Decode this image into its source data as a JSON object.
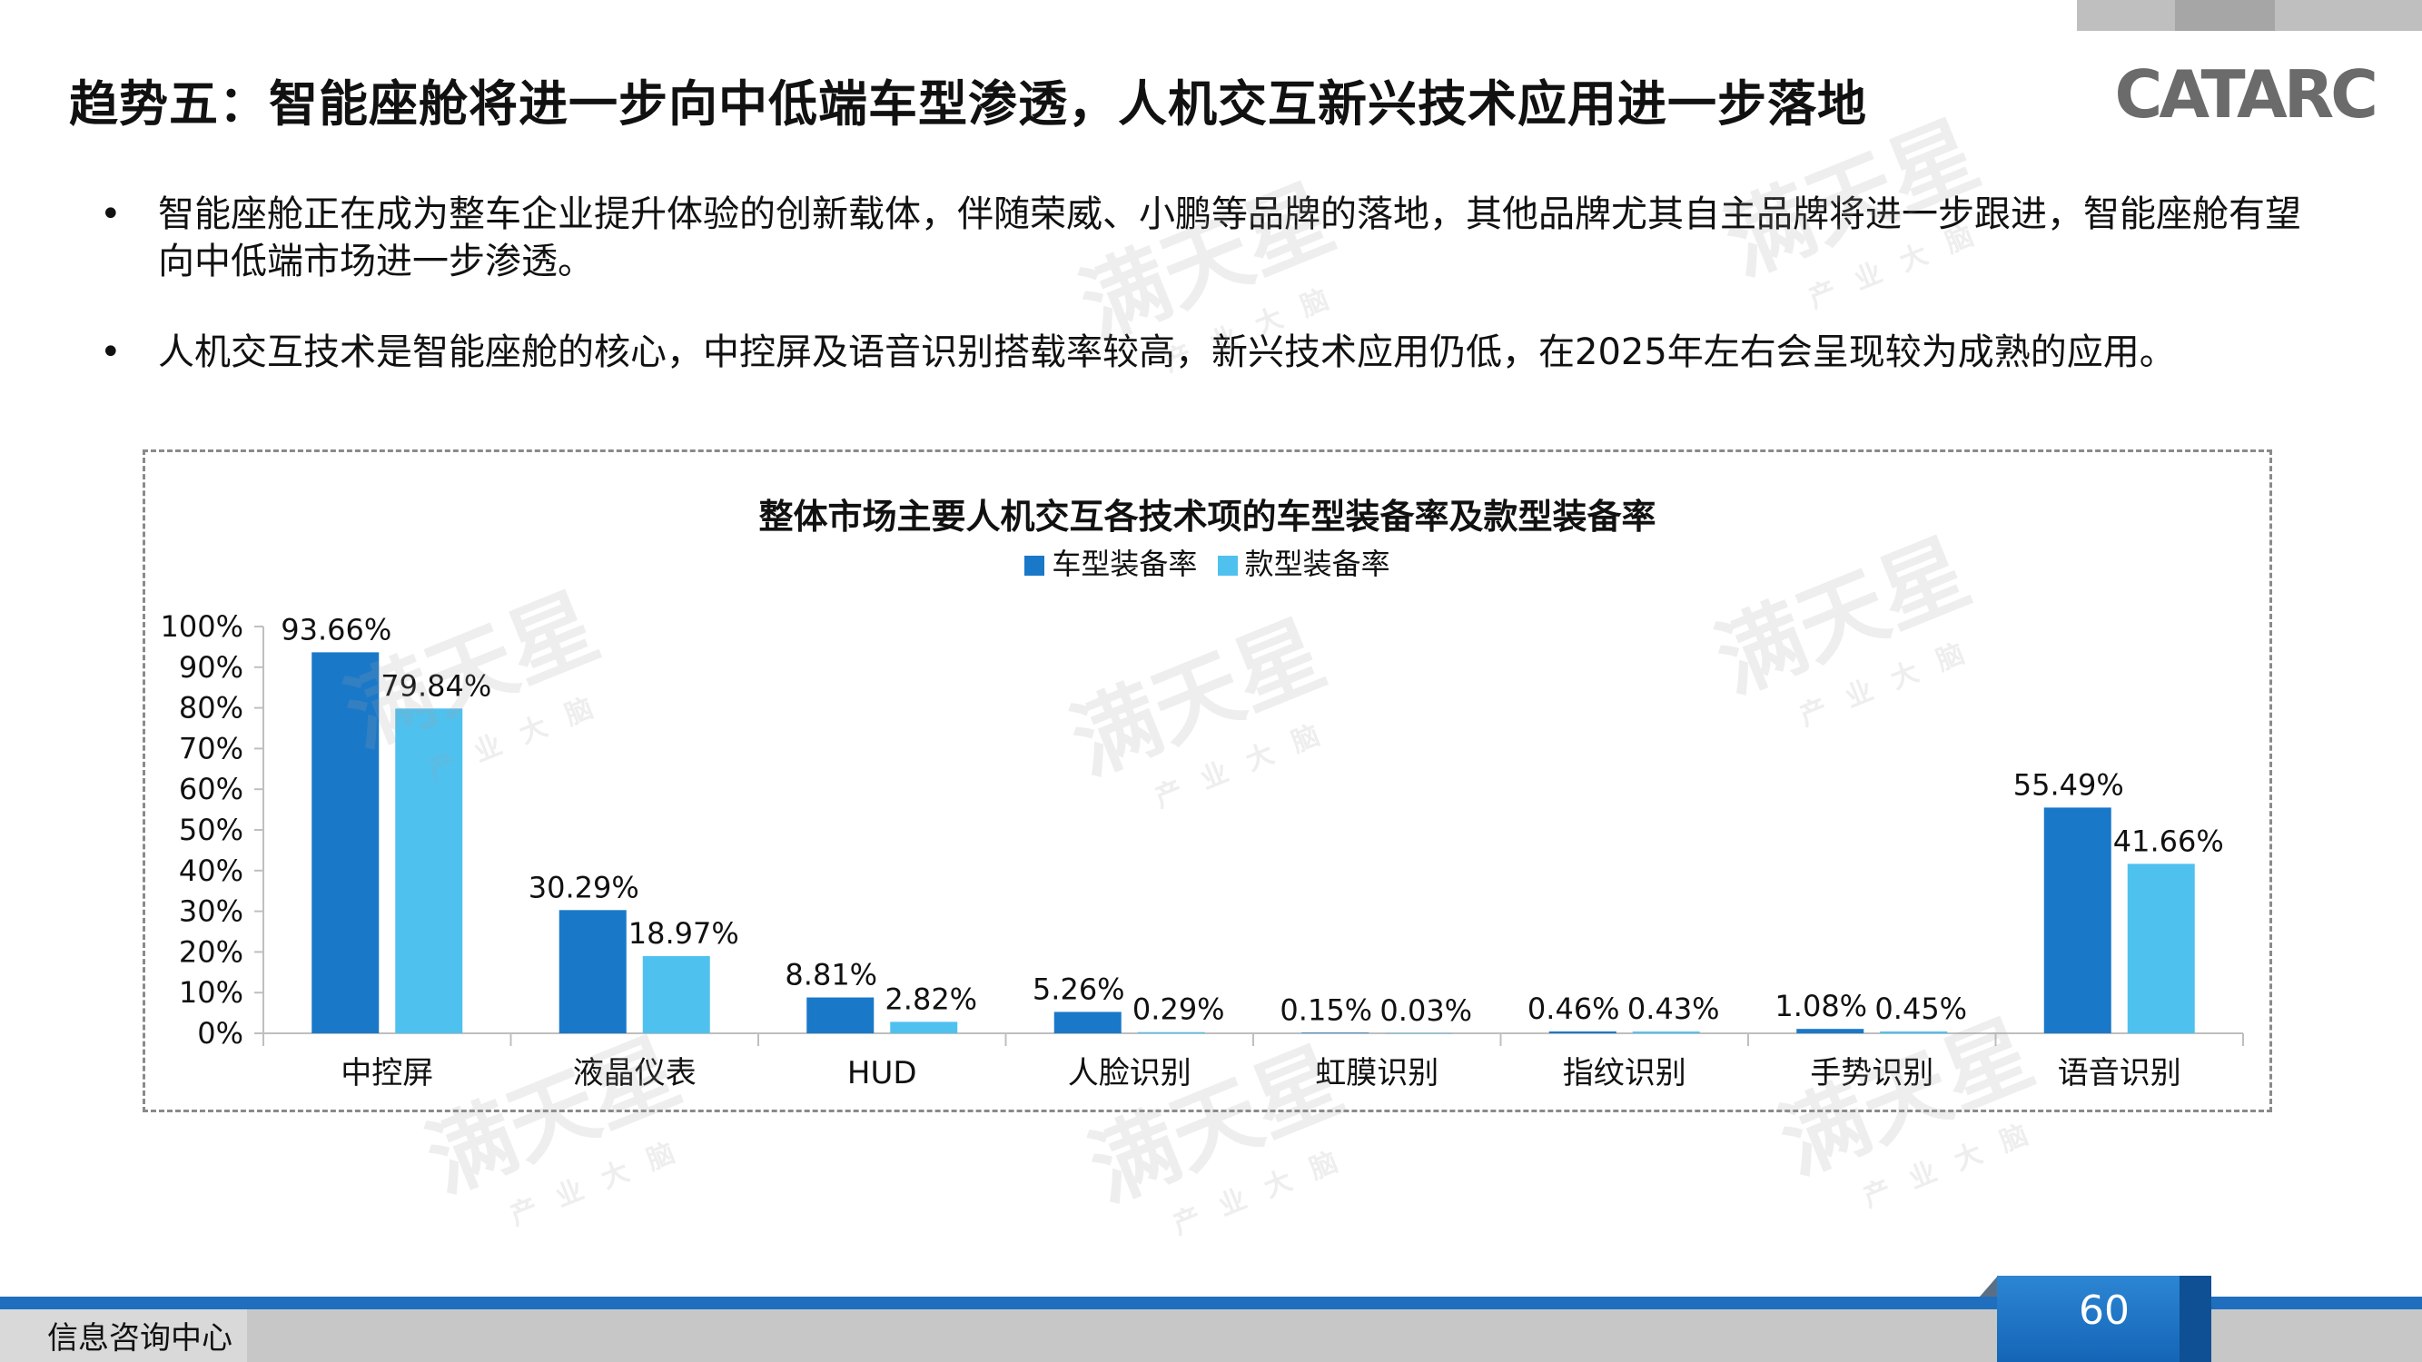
{
  "header": {
    "title": "趋势五：智能座舱将进一步向中低端车型渗透，人机交互新兴技术应用进一步落地",
    "logo_text": "CATARC"
  },
  "bullets": [
    {
      "symbol": "•",
      "text": "智能座舱正在成为整车企业提升体验的创新载体，伴随荣威、小鹏等品牌的落地，其他品牌尤其自主品牌将进一步跟进，智能座舱有望向中低端市场进一步渗透。"
    },
    {
      "symbol": "•",
      "text": "人机交互技术是智能座舱的核心，中控屏及语音识别搭载率较高，新兴技术应用仍低，在2025年左右会呈现较为成熟的应用。"
    }
  ],
  "watermark": {
    "main": "满天星",
    "sub": "产业大脑"
  },
  "chart_data": {
    "type": "bar",
    "title": "整体市场主要人机交互各技术项的车型装备率及款型装备率",
    "categories": [
      "中控屏",
      "液晶仪表",
      "HUD",
      "人脸识别",
      "虹膜识别",
      "指纹识别",
      "手势识别",
      "语音识别"
    ],
    "series": [
      {
        "name": "车型装备率",
        "color": "#1a78c8",
        "values": [
          93.66,
          30.29,
          8.81,
          5.26,
          0.15,
          0.46,
          1.08,
          55.49
        ],
        "labels": [
          "93.66%",
          "30.29%",
          "8.81%",
          "5.26%",
          "0.15%",
          "0.46%",
          "1.08%",
          "55.49%"
        ]
      },
      {
        "name": "款型装备率",
        "color": "#4fc1ef",
        "values": [
          79.84,
          18.97,
          2.82,
          0.29,
          0.03,
          0.43,
          0.45,
          41.66
        ],
        "labels": [
          "79.84%",
          "18.97%",
          "2.82%",
          "0.29%",
          "0.03%",
          "0.43%",
          "0.45%",
          "41.66%"
        ]
      }
    ],
    "ylim": [
      0,
      100
    ],
    "yticks": [
      "0%",
      "10%",
      "20%",
      "30%",
      "40%",
      "50%",
      "60%",
      "70%",
      "80%",
      "90%",
      "100%"
    ],
    "legend_position": "top",
    "grid": false
  },
  "footer": {
    "left_text": "信息咨询中心",
    "page_number": "60"
  }
}
